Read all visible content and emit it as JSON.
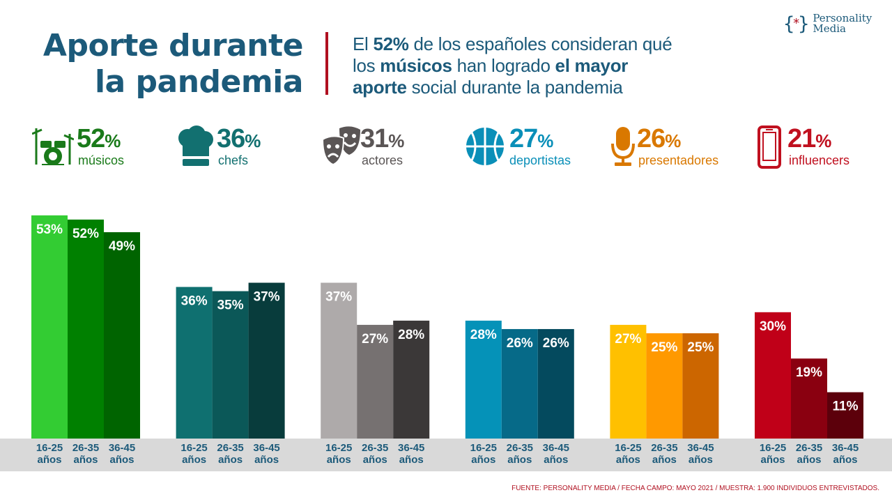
{
  "header": {
    "title_line1": "Aporte durante",
    "title_line2": "la pandemia",
    "subtitle": {
      "p1": "El ",
      "b1": "52%",
      "p2": " de los españoles consideran qué",
      "p3": "los ",
      "b2": "músicos",
      "p4": " han logrado ",
      "b3": "el mayor",
      "b4": "aporte",
      "p5": " social durante la pandemia"
    }
  },
  "logo": {
    "line1": "Personality",
    "line2": "Media",
    "mark_open": "{",
    "mark_star": "*",
    "mark_close": "}"
  },
  "stats": [
    {
      "value": "52",
      "pct": "%",
      "label": "músicos",
      "icon": "drum-kit-icon",
      "color": "#1a7a1a"
    },
    {
      "value": "36",
      "pct": "%",
      "label": "chefs",
      "icon": "chef-hat-icon",
      "color": "#127070"
    },
    {
      "value": "31",
      "pct": "%",
      "label": "actores",
      "icon": "theater-masks-icon",
      "color": "#5a5555"
    },
    {
      "value": "27",
      "pct": "%",
      "label": "deportistas",
      "icon": "basketball-icon",
      "color": "#0a8fb8"
    },
    {
      "value": "26",
      "pct": "%",
      "label": "presentadores",
      "icon": "microphone-icon",
      "color": "#d97800"
    },
    {
      "value": "21",
      "pct": "%",
      "label": "influencers",
      "icon": "smartphone-icon",
      "color": "#c0101f"
    }
  ],
  "chart_data": {
    "type": "bar",
    "title": "",
    "xlabel": "",
    "ylabel": "",
    "categories": [
      "16-25 años",
      "26-35 años",
      "36-45 años"
    ],
    "value_suffix": "%",
    "groups": [
      {
        "name": "músicos",
        "values": [
          53,
          52,
          49
        ],
        "colors": [
          "#33cc33",
          "#008000",
          "#006400"
        ]
      },
      {
        "name": "chefs",
        "values": [
          36,
          35,
          37
        ],
        "colors": [
          "#0f7070",
          "#0b5858",
          "#083c3c"
        ]
      },
      {
        "name": "actores",
        "values": [
          37,
          27,
          28
        ],
        "colors": [
          "#aeaaaa",
          "#767171",
          "#3b3838"
        ]
      },
      {
        "name": "deportistas",
        "values": [
          28,
          26,
          26
        ],
        "colors": [
          "#0592b8",
          "#066a88",
          "#044a5e"
        ]
      },
      {
        "name": "presentadores",
        "values": [
          27,
          25,
          25
        ],
        "colors": [
          "#ffc000",
          "#ff9900",
          "#cc6600"
        ]
      },
      {
        "name": "influencers",
        "values": [
          30,
          19,
          11
        ],
        "colors": [
          "#c00018",
          "#8a0010",
          "#5c000b"
        ]
      }
    ]
  },
  "source": {
    "label": "FUENTE: PERSONALITY MEDIA",
    "rest": " / FECHA CAMPO: MAYO 2021 / MUESTRA: 1.900 INDIVIDUOS ENTREVISTADOS."
  }
}
